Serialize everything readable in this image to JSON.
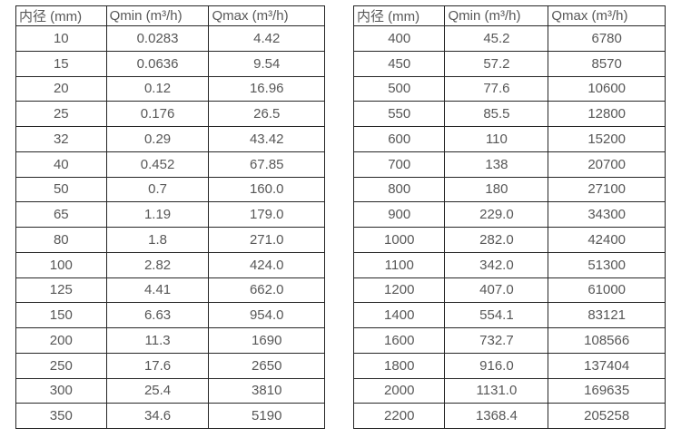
{
  "page": {
    "background": "#ffffff",
    "text_color": "#575757",
    "border_color": "#262626"
  },
  "table_columns": [
    "内径 (mm)",
    "Qmin (m³/h)",
    "Qmax (m³/h)"
  ],
  "left_table": {
    "rows": [
      [
        "10",
        "0.0283",
        "4.42"
      ],
      [
        "15",
        "0.0636",
        "9.54"
      ],
      [
        "20",
        "0.12",
        "16.96"
      ],
      [
        "25",
        "0.176",
        "26.5"
      ],
      [
        "32",
        "0.29",
        "43.42"
      ],
      [
        "40",
        "0.452",
        "67.85"
      ],
      [
        "50",
        "0.7",
        "160.0"
      ],
      [
        "65",
        "1.19",
        "179.0"
      ],
      [
        "80",
        "1.8",
        "271.0"
      ],
      [
        "100",
        "2.82",
        "424.0"
      ],
      [
        "125",
        "4.41",
        "662.0"
      ],
      [
        "150",
        "6.63",
        "954.0"
      ],
      [
        "200",
        "11.3",
        "1690"
      ],
      [
        "250",
        "17.6",
        "2650"
      ],
      [
        "300",
        "25.4",
        "3810"
      ],
      [
        "350",
        "34.6",
        "5190"
      ]
    ]
  },
  "right_table": {
    "rows": [
      [
        "400",
        "45.2",
        "6780"
      ],
      [
        "450",
        "57.2",
        "8570"
      ],
      [
        "500",
        "77.6",
        "10600"
      ],
      [
        "550",
        "85.5",
        "12800"
      ],
      [
        "600",
        "110",
        "15200"
      ],
      [
        "700",
        "138",
        "20700"
      ],
      [
        "800",
        "180",
        "27100"
      ],
      [
        "900",
        "229.0",
        "34300"
      ],
      [
        "1000",
        "282.0",
        "42400"
      ],
      [
        "1100",
        "342.0",
        "51300"
      ],
      [
        "1200",
        "407.0",
        "61000"
      ],
      [
        "1400",
        "554.1",
        "83121"
      ],
      [
        "1600",
        "732.7",
        "108566"
      ],
      [
        "1800",
        "916.0",
        "137404"
      ],
      [
        "2000",
        "1131.0",
        "169635"
      ],
      [
        "2200",
        "1368.4",
        "205258"
      ]
    ]
  }
}
